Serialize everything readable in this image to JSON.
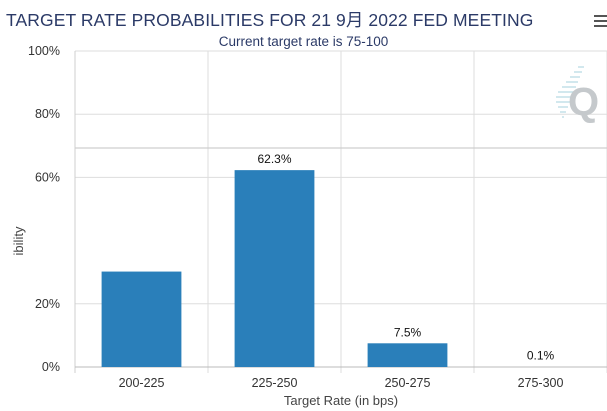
{
  "header": {
    "title": "TARGET RATE PROBABILITIES FOR 21 9月 2022 FED MEETING",
    "subtitle": "Current target rate is 75-100"
  },
  "menu_icon": "hamburger-menu-icon",
  "watermark": {
    "icon": "q-logo-icon",
    "text": "Q"
  },
  "colors": {
    "bar": "#2a7fba",
    "title": "#2b3a67",
    "grid": "#dddddd"
  },
  "chart_data": {
    "type": "bar",
    "title": "TARGET RATE PROBABILITIES FOR 21 9月 2022 FED MEETING",
    "subtitle": "Current target rate is 75-100",
    "xlabel": "Target Rate (in bps)",
    "ylabel": "ibility",
    "categories": [
      "200-225",
      "225-250",
      "250-275",
      "275-300"
    ],
    "values": [
      30.2,
      62.3,
      7.5,
      0.1
    ],
    "data_labels": [
      "",
      "62.3%",
      "7.5%",
      "0.1%"
    ],
    "ylim": [
      0,
      100
    ],
    "y_ticks": [
      {
        "value": 0,
        "label": "0%"
      },
      {
        "value": 20,
        "label": "20%"
      },
      {
        "value": 60,
        "label": "60%"
      },
      {
        "value": 80,
        "label": "80%"
      },
      {
        "value": 100,
        "label": "100%"
      }
    ],
    "grid": true,
    "legend": "none"
  }
}
